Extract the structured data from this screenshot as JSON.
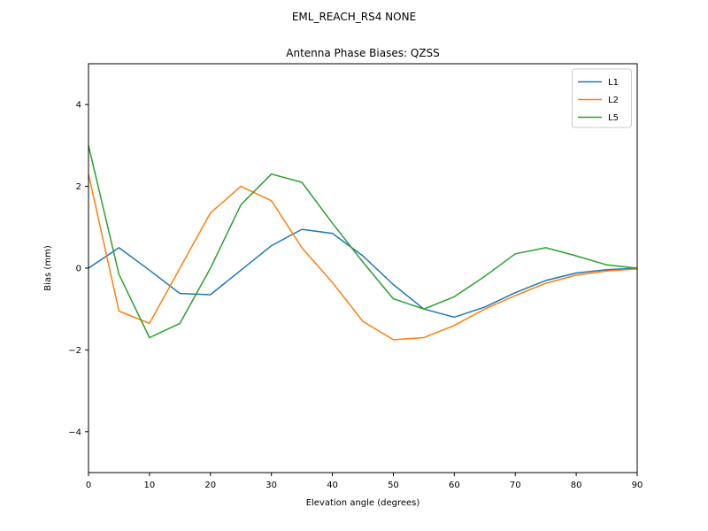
{
  "chart_data": {
    "type": "line",
    "suptitle": "EML_REACH_RS4   NONE",
    "title": "Antenna Phase Biases: QZSS",
    "xlabel": "Elevation angle (degrees)",
    "ylabel": "Bias (mm)",
    "xlim": [
      0,
      90
    ],
    "ylim": [
      -5,
      5
    ],
    "xticks": [
      0,
      10,
      20,
      30,
      40,
      50,
      60,
      70,
      80,
      90
    ],
    "yticks": [
      -4,
      -2,
      0,
      2,
      4
    ],
    "grid": false,
    "legend_position": "upper-right",
    "background": "#ffffff",
    "axis_color": "#000000",
    "legend_border_color": "#cccccc",
    "x": [
      0,
      5,
      10,
      15,
      20,
      25,
      30,
      35,
      40,
      45,
      50,
      55,
      60,
      65,
      70,
      75,
      80,
      85,
      90
    ],
    "series": [
      {
        "name": "L1",
        "color": "#1f77b4",
        "values": [
          0.0,
          0.5,
          -0.05,
          -0.62,
          -0.65,
          -0.05,
          0.55,
          0.95,
          0.85,
          0.3,
          -0.4,
          -1.0,
          -1.2,
          -0.95,
          -0.6,
          -0.3,
          -0.12,
          -0.04,
          0.0
        ]
      },
      {
        "name": "L2",
        "color": "#ff7f0e",
        "values": [
          2.3,
          -1.05,
          -1.35,
          0.0,
          1.35,
          2.0,
          1.65,
          0.5,
          -0.35,
          -1.3,
          -1.75,
          -1.7,
          -1.4,
          -1.0,
          -0.67,
          -0.37,
          -0.17,
          -0.07,
          -0.02
        ]
      },
      {
        "name": "L5",
        "color": "#2ca02c",
        "values": [
          3.0,
          -0.15,
          -1.7,
          -1.35,
          0.0,
          1.55,
          2.3,
          2.1,
          1.1,
          0.15,
          -0.75,
          -1.0,
          -0.7,
          -0.2,
          0.35,
          0.5,
          0.3,
          0.08,
          0.0
        ]
      }
    ]
  }
}
